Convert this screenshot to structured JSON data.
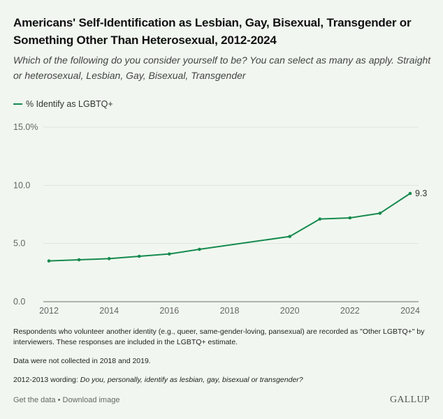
{
  "header": {
    "title": "Americans' Self-Identification as Lesbian, Gay, Bisexual, Transgender or Something Other Than Heterosexual, 2012-2024",
    "subtitle": "Which of the following do you consider yourself to be? You can select as many as apply. Straight or heterosexual, Lesbian, Gay, Bisexual, Transgender"
  },
  "colors": {
    "background": "#f1f7f0",
    "series": "#168a4e",
    "gridline": "#dfe6de",
    "axis": "#8a8a8a",
    "tick_text": "#666666"
  },
  "chart_data": {
    "type": "line",
    "title": "Americans' Self-Identification as Lesbian, Gay, Bisexual, Transgender or Something Other Than Heterosexual, 2012-2024",
    "xlabel": "",
    "ylabel": "",
    "xlim": [
      2012,
      2024
    ],
    "ylim": [
      0,
      15
    ],
    "x_ticks": [
      2012,
      2014,
      2016,
      2018,
      2020,
      2022,
      2024
    ],
    "x_tick_labels": [
      "2012",
      "2014",
      "2016",
      "2018",
      "2020",
      "2022",
      "2024"
    ],
    "y_ticks": [
      0,
      5,
      10,
      15
    ],
    "y_tick_labels": [
      "0.0",
      "5.0",
      "10.0",
      "15.0%"
    ],
    "grid": true,
    "legend_position": "top-left",
    "series": [
      {
        "name": "% Identify as LGBTQ+",
        "x": [
          2012,
          2013,
          2014,
          2015,
          2016,
          2017,
          2020,
          2021,
          2022,
          2023,
          2024
        ],
        "values": [
          3.5,
          3.6,
          3.7,
          3.9,
          4.1,
          4.5,
          5.6,
          7.1,
          7.2,
          7.6,
          9.3
        ]
      }
    ],
    "annotations": [
      {
        "x": 2024,
        "y": 9.3,
        "text": "9.3"
      }
    ]
  },
  "notes": {
    "note1": "Respondents who volunteer another identity (e.g., queer, same-gender-loving, pansexual) are recorded as \"Other LGBTQ+\" by interviewers. These responses are included in the LGBTQ+ estimate.",
    "note2": "Data were not collected in 2018 and 2019.",
    "note3_prefix": "2012-2013 wording: ",
    "note3_italic": "Do you, personally, identify as lesbian, gay, bisexual or transgender?"
  },
  "footer": {
    "get_data": "Get the data",
    "separator": " • ",
    "download": "Download image",
    "brand": "GALLUP"
  }
}
